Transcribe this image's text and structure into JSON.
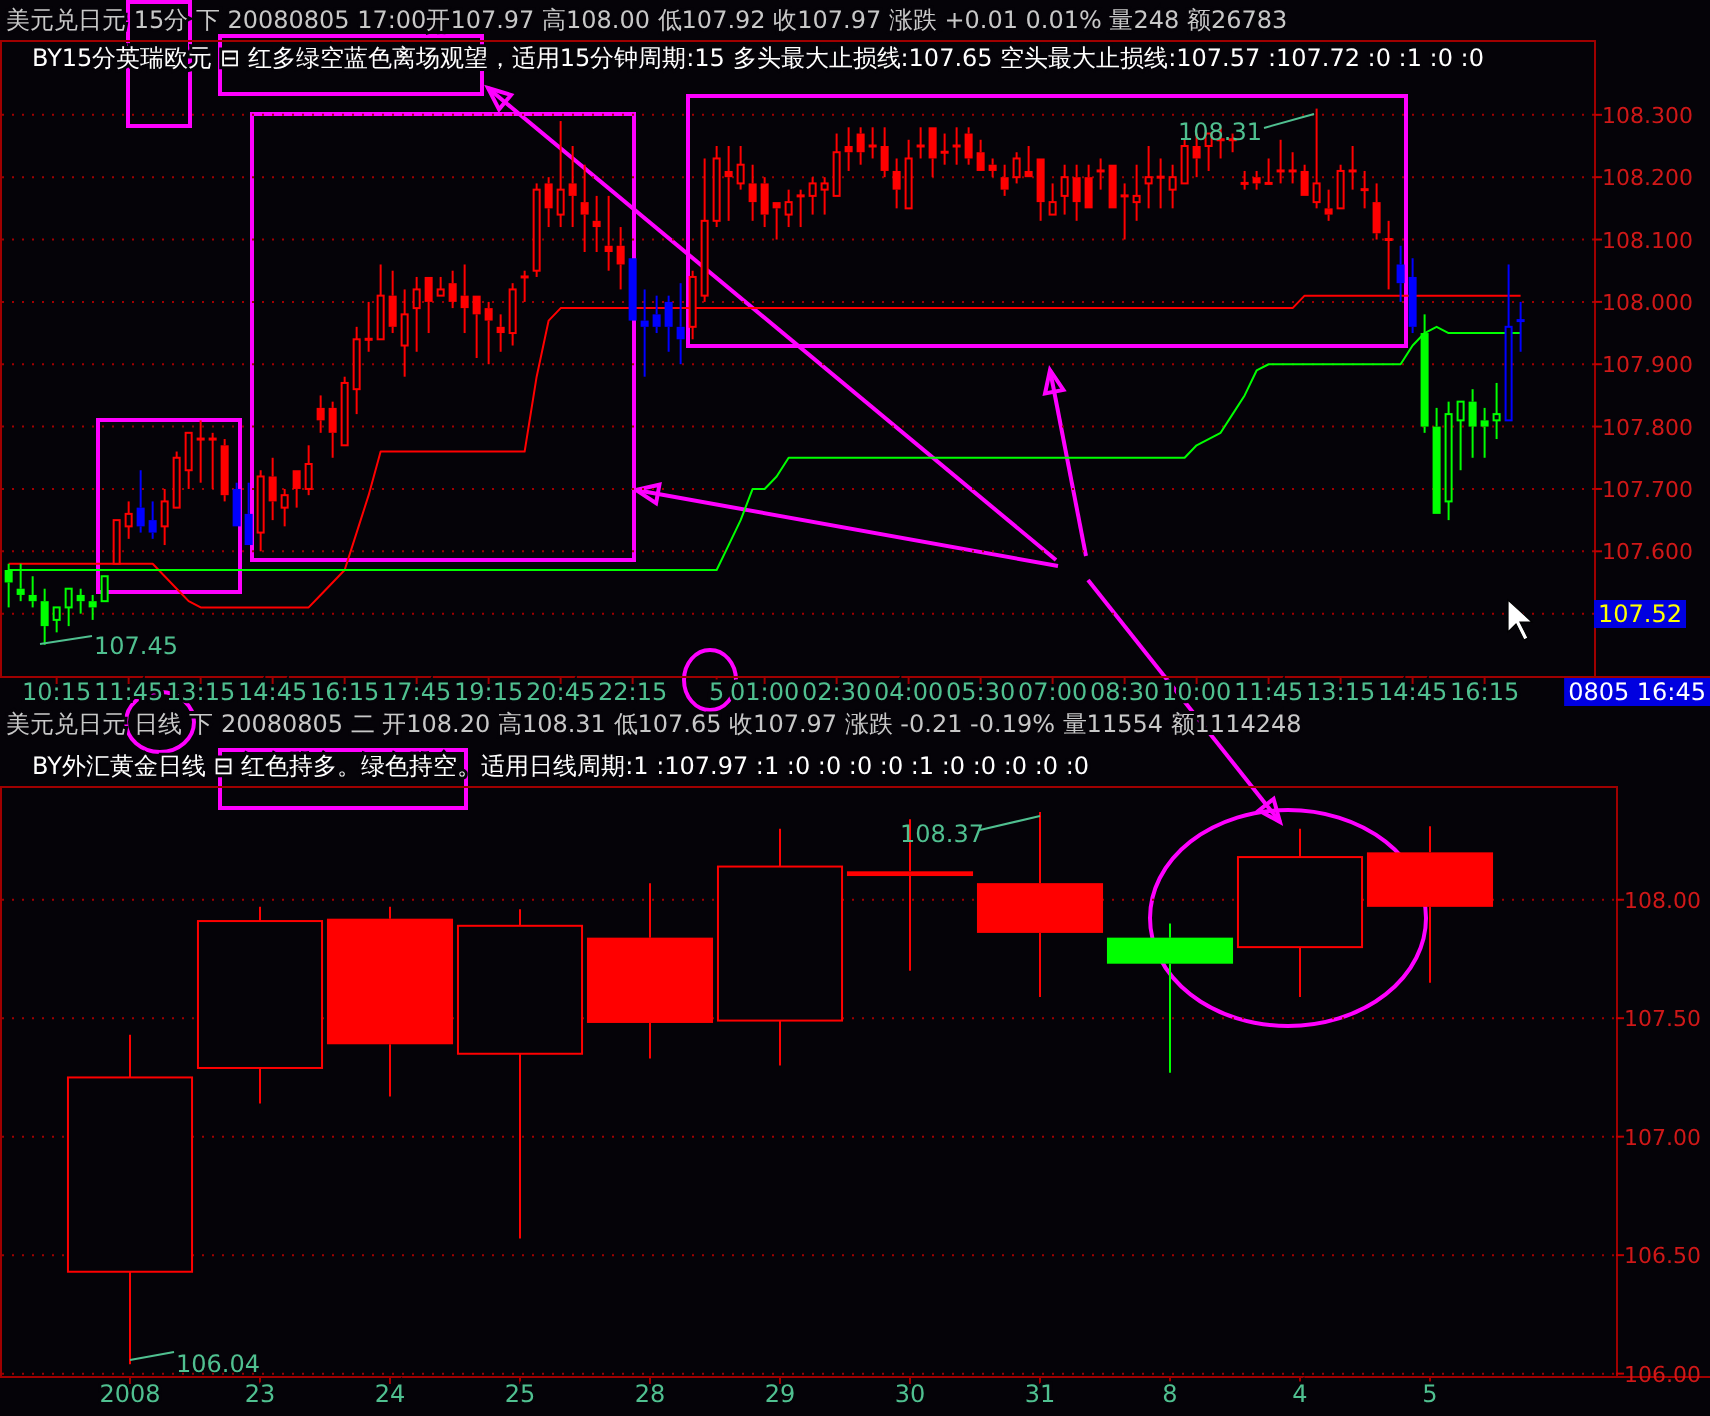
{
  "chart_data": [
    {
      "type": "candlestick",
      "title": "美元兑日元 15分 下 20080805 17:00开107.97 高108.00 低107.92 收107.97 涨跌 +0.01 0.01% 量248 额26783",
      "subtitle": "BY15分英瑞欧元 ⊟ 红多绿空蓝色离场观望，适用15分钟周期:15 多头最大止损线:107.65 空头最大止损线:107.57 :107.72 :0 :1 :0 :0",
      "categories": [
        null,
        null,
        null,
        null,
        "10:15",
        null,
        null,
        null,
        null,
        null,
        "11:45",
        null,
        null,
        null,
        null,
        null,
        "13:15",
        null,
        null,
        null,
        null,
        null,
        "14:45",
        null,
        null,
        null,
        null,
        null,
        "16:15",
        null,
        null,
        null,
        null,
        null,
        "17:45",
        null,
        null,
        null,
        null,
        null,
        "19:15",
        null,
        null,
        null,
        null,
        null,
        "20:45",
        null,
        null,
        null,
        null,
        null,
        "22:15",
        null,
        null,
        null,
        null,
        null,
        null,
        "5",
        null,
        null,
        null,
        "01:00",
        null,
        null,
        null,
        null,
        null,
        "02:30",
        null,
        null,
        null,
        null,
        null,
        "04:00",
        null,
        null,
        null,
        null,
        null,
        "05:30",
        null,
        null,
        null,
        null,
        null,
        "07:00",
        null,
        null,
        null,
        null,
        null,
        "08:30",
        null,
        null,
        null,
        null,
        null,
        "10:00",
        null,
        null,
        null,
        null,
        null,
        "11:45",
        null,
        null,
        null,
        null,
        null,
        "13:15",
        null,
        null,
        null,
        null,
        null,
        "14:45",
        null,
        null,
        null,
        null,
        null,
        "16:15",
        null,
        null,
        null
      ],
      "ohlc": [
        [
          107.57,
          107.58,
          107.51,
          107.55
        ],
        [
          107.54,
          107.58,
          107.52,
          107.53
        ],
        [
          107.53,
          107.56,
          107.51,
          107.52
        ],
        [
          107.52,
          107.54,
          107.45,
          107.48
        ],
        [
          107.49,
          107.51,
          107.47,
          107.51
        ],
        [
          107.51,
          107.54,
          107.48,
          107.54
        ],
        [
          107.53,
          107.54,
          107.5,
          107.52
        ],
        [
          107.52,
          107.53,
          107.49,
          107.51
        ],
        [
          107.52,
          107.56,
          107.52,
          107.56
        ],
        [
          107.58,
          107.65,
          107.58,
          107.65
        ],
        [
          107.64,
          107.68,
          107.62,
          107.66
        ],
        [
          107.67,
          107.73,
          107.63,
          107.64
        ],
        [
          107.65,
          107.68,
          107.62,
          107.63
        ],
        [
          107.64,
          107.7,
          107.61,
          107.68
        ],
        [
          107.67,
          107.76,
          107.67,
          107.75
        ],
        [
          107.73,
          107.79,
          107.7,
          107.79
        ],
        [
          107.78,
          107.81,
          107.71,
          107.78
        ],
        [
          107.78,
          107.79,
          107.7,
          107.78
        ],
        [
          107.77,
          107.78,
          107.68,
          107.69
        ],
        [
          107.7,
          107.71,
          107.64,
          107.64
        ],
        [
          107.66,
          107.71,
          107.61,
          107.61
        ],
        [
          107.63,
          107.73,
          107.6,
          107.72
        ],
        [
          107.72,
          107.75,
          107.65,
          107.68
        ],
        [
          107.67,
          107.7,
          107.64,
          107.69
        ],
        [
          107.73,
          107.73,
          107.67,
          107.7
        ],
        [
          107.7,
          107.77,
          107.69,
          107.74
        ],
        [
          107.83,
          107.85,
          107.79,
          107.81
        ],
        [
          107.83,
          107.84,
          107.75,
          107.79
        ],
        [
          107.77,
          107.88,
          107.77,
          107.87
        ],
        [
          107.86,
          107.96,
          107.82,
          107.94
        ],
        [
          107.94,
          108.0,
          107.92,
          107.94
        ],
        [
          107.94,
          108.06,
          107.94,
          108.01
        ],
        [
          108.01,
          108.05,
          107.95,
          107.96
        ],
        [
          107.93,
          108.02,
          107.88,
          107.98
        ],
        [
          107.99,
          108.04,
          107.92,
          108.02
        ],
        [
          108.04,
          108.04,
          107.95,
          108.0
        ],
        [
          108.01,
          108.04,
          108.01,
          108.02
        ],
        [
          108.03,
          108.05,
          107.99,
          108.0
        ],
        [
          108.01,
          108.06,
          107.95,
          107.99
        ],
        [
          108.01,
          108.01,
          107.91,
          107.98
        ],
        [
          107.99,
          108.0,
          107.9,
          107.97
        ],
        [
          107.96,
          107.98,
          107.92,
          107.95
        ],
        [
          107.95,
          108.03,
          107.93,
          108.02
        ],
        [
          108.04,
          108.05,
          108.0,
          108.04
        ],
        [
          108.05,
          108.19,
          108.04,
          108.18
        ],
        [
          108.19,
          108.2,
          108.12,
          108.15
        ],
        [
          108.14,
          108.29,
          108.12,
          108.18
        ],
        [
          108.19,
          108.25,
          108.12,
          108.17
        ],
        [
          108.16,
          108.22,
          108.08,
          108.14
        ],
        [
          108.13,
          108.17,
          108.08,
          108.12
        ],
        [
          108.09,
          108.17,
          108.05,
          108.08
        ],
        [
          108.09,
          108.12,
          108.02,
          108.06
        ],
        [
          108.07,
          108.07,
          107.97,
          107.97
        ],
        [
          107.97,
          108.02,
          107.88,
          107.96
        ],
        [
          107.98,
          108.01,
          107.95,
          107.96
        ],
        [
          108.0,
          108.01,
          107.92,
          107.96
        ],
        [
          107.96,
          108.03,
          107.9,
          107.94
        ],
        [
          107.96,
          108.05,
          107.94,
          108.04
        ],
        [
          108.01,
          108.23,
          108.0,
          108.13
        ],
        [
          108.13,
          108.25,
          108.12,
          108.23
        ],
        [
          108.21,
          108.25,
          108.13,
          108.2
        ],
        [
          108.19,
          108.25,
          108.18,
          108.22
        ],
        [
          108.19,
          108.22,
          108.13,
          108.16
        ],
        [
          108.19,
          108.2,
          108.12,
          108.14
        ],
        [
          108.16,
          108.16,
          108.1,
          108.15
        ],
        [
          108.14,
          108.18,
          108.12,
          108.16
        ],
        [
          108.17,
          108.18,
          108.12,
          108.17
        ],
        [
          108.17,
          108.2,
          108.14,
          108.19
        ],
        [
          108.18,
          108.2,
          108.14,
          108.19
        ],
        [
          108.17,
          108.27,
          108.17,
          108.24
        ],
        [
          108.25,
          108.28,
          108.21,
          108.24
        ],
        [
          108.27,
          108.28,
          108.22,
          108.24
        ],
        [
          108.25,
          108.28,
          108.23,
          108.25
        ],
        [
          108.25,
          108.28,
          108.2,
          108.21
        ],
        [
          108.21,
          108.23,
          108.15,
          108.18
        ],
        [
          108.15,
          108.26,
          108.15,
          108.23
        ],
        [
          108.25,
          108.28,
          108.23,
          108.25
        ],
        [
          108.28,
          108.28,
          108.2,
          108.23
        ],
        [
          108.24,
          108.27,
          108.22,
          108.24
        ],
        [
          108.25,
          108.28,
          108.22,
          108.25
        ],
        [
          108.27,
          108.28,
          108.22,
          108.23
        ],
        [
          108.24,
          108.26,
          108.21,
          108.21
        ],
        [
          108.22,
          108.23,
          108.2,
          108.21
        ],
        [
          108.2,
          108.22,
          108.17,
          108.18
        ],
        [
          108.2,
          108.24,
          108.19,
          108.23
        ],
        [
          108.21,
          108.25,
          108.2,
          108.2
        ],
        [
          108.23,
          108.23,
          108.13,
          108.16
        ],
        [
          108.14,
          108.19,
          108.14,
          108.16
        ],
        [
          108.17,
          108.22,
          108.14,
          108.2
        ],
        [
          108.2,
          108.22,
          108.13,
          108.16
        ],
        [
          108.2,
          108.22,
          108.15,
          108.15
        ],
        [
          108.21,
          108.23,
          108.18,
          108.21
        ],
        [
          108.22,
          108.22,
          108.15,
          108.15
        ],
        [
          108.17,
          108.19,
          108.1,
          108.17
        ],
        [
          108.16,
          108.22,
          108.13,
          108.17
        ],
        [
          108.19,
          108.25,
          108.15,
          108.2
        ],
        [
          108.2,
          108.23,
          108.15,
          108.2
        ],
        [
          108.18,
          108.22,
          108.15,
          108.2
        ],
        [
          108.19,
          108.26,
          108.19,
          108.25
        ],
        [
          108.25,
          108.27,
          108.2,
          108.23
        ],
        [
          108.25,
          108.27,
          108.21,
          108.27
        ],
        [
          108.26,
          108.28,
          108.23,
          108.26
        ],
        [
          108.26,
          108.27,
          108.24,
          108.26
        ],
        [
          108.19,
          108.21,
          108.18,
          108.19
        ],
        [
          108.2,
          108.21,
          108.18,
          108.19
        ],
        [
          108.19,
          108.23,
          108.19,
          108.19
        ],
        [
          108.21,
          108.26,
          108.19,
          108.21
        ],
        [
          108.21,
          108.24,
          108.19,
          108.21
        ],
        [
          108.21,
          108.22,
          108.17,
          108.17
        ],
        [
          108.16,
          108.31,
          108.15,
          108.19
        ],
        [
          108.15,
          108.18,
          108.13,
          108.14
        ],
        [
          108.15,
          108.22,
          108.15,
          108.21
        ],
        [
          108.21,
          108.25,
          108.18,
          108.21
        ],
        [
          108.18,
          108.21,
          108.15,
          108.18
        ],
        [
          108.16,
          108.19,
          108.1,
          108.11
        ],
        [
          108.1,
          108.13,
          108.02,
          108.1
        ],
        [
          108.06,
          108.09,
          108.0,
          108.03
        ],
        [
          108.04,
          108.07,
          107.95,
          107.96
        ],
        [
          107.95,
          107.98,
          107.79,
          107.8
        ],
        [
          107.8,
          107.83,
          107.66,
          107.66
        ],
        [
          107.68,
          107.84,
          107.65,
          107.82
        ],
        [
          107.81,
          107.84,
          107.73,
          107.84
        ],
        [
          107.84,
          107.86,
          107.75,
          107.8
        ],
        [
          107.81,
          107.83,
          107.75,
          107.8
        ],
        [
          107.81,
          107.87,
          107.78,
          107.82
        ],
        [
          107.81,
          108.06,
          107.81,
          107.96
        ],
        [
          107.97,
          108.0,
          107.92,
          107.97
        ]
      ],
      "colors": [
        "#00ff00",
        "#00ff00",
        "#00ff00",
        "#00ff00",
        "#00ff00",
        "#00ff00",
        "#00ff00",
        "#00ff00",
        "#00ff00",
        "#ff0000",
        "#ff0000",
        "#0000ff",
        "#0000ff",
        "#ff0000",
        "#ff0000",
        "#ff0000",
        "#ff0000",
        "#ff0000",
        "#ff0000",
        "#0000ff",
        "#0000ff",
        "#ff0000",
        "#ff0000",
        "#ff0000",
        "#ff0000",
        "#ff0000",
        "#ff0000",
        "#ff0000",
        "#ff0000",
        "#ff0000",
        "#ff0000",
        "#ff0000",
        "#ff0000",
        "#ff0000",
        "#ff0000",
        "#ff0000",
        "#ff0000",
        "#ff0000",
        "#ff0000",
        "#ff0000",
        "#ff0000",
        "#ff0000",
        "#ff0000",
        "#ff0000",
        "#ff0000",
        "#ff0000",
        "#ff0000",
        "#ff0000",
        "#ff0000",
        "#ff0000",
        "#ff0000",
        "#ff0000",
        "#0000ff",
        "#0000ff",
        "#0000ff",
        "#0000ff",
        "#0000ff",
        "#ff0000",
        "#ff0000",
        "#ff0000",
        "#ff0000",
        "#ff0000",
        "#ff0000",
        "#ff0000",
        "#ff0000",
        "#ff0000",
        "#ff0000",
        "#ff0000",
        "#ff0000",
        "#ff0000",
        "#ff0000",
        "#ff0000",
        "#ff0000",
        "#ff0000",
        "#ff0000",
        "#ff0000",
        "#ff0000",
        "#ff0000",
        "#ff0000",
        "#ff0000",
        "#ff0000",
        "#ff0000",
        "#ff0000",
        "#ff0000",
        "#ff0000",
        "#ff0000",
        "#ff0000",
        "#ff0000",
        "#ff0000",
        "#ff0000",
        "#ff0000",
        "#ff0000",
        "#ff0000",
        "#ff0000",
        "#ff0000",
        "#ff0000",
        "#ff0000",
        "#ff0000",
        "#ff0000",
        "#ff0000",
        "#ff0000",
        "#ff0000",
        "#ff0000",
        "#ff0000",
        "#ff0000",
        "#ff0000",
        "#ff0000",
        "#ff0000",
        "#ff0000",
        "#ff0000",
        "#ff0000",
        "#ff0000",
        "#ff0000",
        "#ff0000",
        "#ff0000",
        "#ff0000",
        "#0000ff",
        "#0000ff",
        "#00ff00",
        "#00ff00",
        "#00ff00",
        "#00ff00",
        "#00ff00",
        "#00ff00",
        "#00ff00",
        "#0000ff",
        "#0000ff"
      ],
      "series": [
        {
          "type": "line",
          "color": "#ff0000",
          "values": [
            107.58,
            107.58,
            107.58,
            107.58,
            107.58,
            107.58,
            107.58,
            107.58,
            107.58,
            107.58,
            107.58,
            107.58,
            107.58,
            107.56,
            107.54,
            107.52,
            107.51,
            107.51,
            107.51,
            107.51,
            107.51,
            107.51,
            107.51,
            107.51,
            107.51,
            107.51,
            107.53,
            107.55,
            107.57,
            107.63,
            107.69,
            107.76,
            107.76,
            107.76,
            107.76,
            107.76,
            107.76,
            107.76,
            107.76,
            107.76,
            107.76,
            107.76,
            107.76,
            107.76,
            107.88,
            107.97,
            107.99,
            107.99,
            107.99,
            107.99,
            107.99,
            107.99,
            107.99,
            107.99,
            107.99,
            107.99,
            107.99,
            107.99,
            107.99,
            107.99,
            107.99,
            107.99,
            107.99,
            107.99,
            107.99,
            107.99,
            107.99,
            107.99,
            107.99,
            107.99,
            107.99,
            107.99,
            107.99,
            107.99,
            107.99,
            107.99,
            107.99,
            107.99,
            107.99,
            107.99,
            107.99,
            107.99,
            107.99,
            107.99,
            107.99,
            107.99,
            107.99,
            107.99,
            107.99,
            107.99,
            107.99,
            107.99,
            107.99,
            107.99,
            107.99,
            107.99,
            107.99,
            107.99,
            107.99,
            107.99,
            107.99,
            107.99,
            107.99,
            107.99,
            107.99,
            107.99,
            107.99,
            107.99,
            108.01,
            108.01,
            108.01,
            108.01,
            108.01,
            108.01,
            108.01,
            108.01,
            108.01,
            108.01,
            108.01,
            108.01,
            108.01,
            108.01,
            108.01,
            108.01,
            108.01,
            108.01,
            108.01
          ]
        },
        {
          "type": "line",
          "color": "#00ff00",
          "values": [
            107.57,
            107.57,
            107.57,
            107.57,
            107.57,
            107.57,
            107.57,
            107.57,
            107.57,
            107.57,
            107.57,
            107.57,
            107.57,
            107.57,
            107.57,
            107.57,
            107.57,
            107.57,
            107.57,
            107.57,
            107.57,
            107.57,
            107.57,
            107.57,
            107.57,
            107.57,
            107.57,
            107.57,
            107.57,
            107.57,
            107.57,
            107.57,
            107.57,
            107.57,
            107.57,
            107.57,
            107.57,
            107.57,
            107.57,
            107.57,
            107.57,
            107.57,
            107.57,
            107.57,
            107.57,
            107.57,
            107.57,
            107.57,
            107.57,
            107.57,
            107.57,
            107.57,
            107.57,
            107.57,
            107.57,
            107.57,
            107.57,
            107.57,
            107.57,
            107.57,
            107.61,
            107.65,
            107.7,
            107.7,
            107.72,
            107.75,
            107.75,
            107.75,
            107.75,
            107.75,
            107.75,
            107.75,
            107.75,
            107.75,
            107.75,
            107.75,
            107.75,
            107.75,
            107.75,
            107.75,
            107.75,
            107.75,
            107.75,
            107.75,
            107.75,
            107.75,
            107.75,
            107.75,
            107.75,
            107.75,
            107.75,
            107.75,
            107.75,
            107.75,
            107.75,
            107.75,
            107.75,
            107.75,
            107.75,
            107.77,
            107.78,
            107.79,
            107.82,
            107.85,
            107.89,
            107.9,
            107.9,
            107.9,
            107.9,
            107.9,
            107.9,
            107.9,
            107.9,
            107.9,
            107.9,
            107.9,
            107.9,
            107.93,
            107.95,
            107.96,
            107.95,
            107.95,
            107.95,
            107.95,
            107.95,
            107.95,
            107.95
          ]
        }
      ],
      "ylim": [
        107.4,
        108.42
      ],
      "yticks": [
        {
          "value": 107.5,
          "label": null
        },
        {
          "value": 107.6,
          "label": "107.600"
        },
        {
          "value": 107.7,
          "label": "107.700"
        },
        {
          "value": 107.8,
          "label": "107.800"
        },
        {
          "value": 107.9,
          "label": "107.900"
        },
        {
          "value": 108.0,
          "label": "108.000"
        },
        {
          "value": 108.1,
          "label": "108.100"
        },
        {
          "value": 108.2,
          "label": "108.200"
        },
        {
          "value": 108.3,
          "label": "108.300"
        }
      ],
      "grid": "y",
      "annotations": [
        "107.45",
        "108.31",
        "107.52",
        "0805 16:45"
      ]
    },
    {
      "type": "candlestick",
      "title": "美元兑日元 日线 下 20080805 二 开108.20 高108.31 低107.65 收107.97 涨跌 -0.21 -0.19% 量11554 额1114248",
      "subtitle": "BY外汇黄金日线 ⊟ 红色持多。绿色持空。适用日线周期:1 :107.97 :1 :0 :0 :0 :0 :1 :0 :0 :0 :0 :0",
      "categories": [
        "2008",
        "23",
        "24",
        "25",
        "28",
        "29",
        "30",
        "31",
        "8",
        "4",
        "5"
      ],
      "ohlc": [
        [
          106.43,
          107.43,
          106.04,
          107.25
        ],
        [
          107.29,
          107.97,
          107.14,
          107.91
        ],
        [
          107.92,
          107.97,
          107.17,
          107.39
        ],
        [
          107.35,
          107.96,
          106.57,
          107.89
        ],
        [
          107.84,
          108.07,
          107.33,
          107.48
        ],
        [
          107.49,
          108.3,
          107.3,
          108.14
        ],
        [
          108.12,
          108.34,
          107.7,
          108.1
        ],
        [
          108.07,
          108.37,
          107.59,
          107.86
        ],
        [
          107.84,
          107.9,
          107.27,
          107.73
        ],
        [
          107.8,
          108.3,
          107.59,
          108.18
        ],
        [
          108.2,
          108.31,
          107.65,
          107.97
        ]
      ],
      "colors": [
        "#ff0000",
        "#ff0000",
        "#ff0000",
        "#ff0000",
        "#ff0000",
        "#ff0000",
        "#ff0000",
        "#ff0000",
        "#00ff00",
        "#ff0000",
        "#ff0000"
      ],
      "ylim": [
        105.99,
        108.48
      ],
      "yticks": [
        {
          "value": 106,
          "label": "106.00"
        },
        {
          "value": 106.5,
          "label": "106.50"
        },
        {
          "value": 107,
          "label": "107.00"
        },
        {
          "value": 107.5,
          "label": "107.50"
        },
        {
          "value": 108,
          "label": "108.00"
        }
      ],
      "grid": "y",
      "annotations": [
        "106.04",
        "108.37"
      ]
    }
  ]
}
